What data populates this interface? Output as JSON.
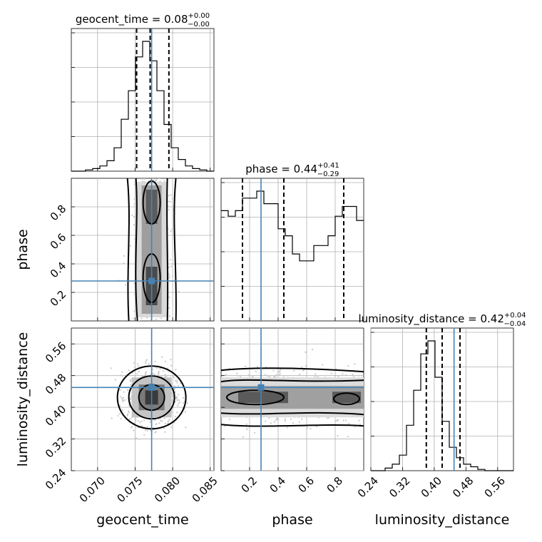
{
  "chart_data": {
    "type": "corner",
    "parameters": [
      {
        "name": "geocent_time",
        "label": "geocent_time",
        "title": {
          "prefix": "geocent_time = 0.08",
          "plus": "+0.00",
          "minus": "−0.00"
        },
        "range": [
          0.0665,
          0.0855
        ],
        "ticks": [
          0.07,
          0.075,
          0.08,
          0.085
        ],
        "tick_labels": [
          "0.070",
          "0.075",
          "0.080",
          "0.085"
        ],
        "truth": 0.0772,
        "quantiles": [
          0.0752,
          0.077,
          0.0795
        ],
        "hist": {
          "edges_start": 0.0665,
          "bin_width": 0.00095,
          "counts": [
            0,
            0,
            1,
            2,
            4,
            8,
            18,
            40,
            62,
            88,
            100,
            85,
            62,
            36,
            18,
            9,
            4,
            2,
            1,
            0
          ]
        }
      },
      {
        "name": "phase",
        "label": "phase",
        "title": {
          "prefix": "phase = 0.44",
          "plus": "+0.41",
          "minus": "−0.29"
        },
        "range": [
          0.0,
          1.0
        ],
        "ticks": [
          0.2,
          0.4,
          0.6,
          0.8
        ],
        "tick_labels": [
          "0.2",
          "0.4",
          "0.6",
          "0.8"
        ],
        "truth": 0.28,
        "quantiles": [
          0.15,
          0.44,
          0.86
        ],
        "hist": {
          "edges_start": 0.0,
          "bin_width": 0.05,
          "counts": [
            79,
            75,
            79,
            88,
            88,
            93,
            84,
            84,
            66,
            61,
            48,
            43,
            43,
            54,
            54,
            61,
            75,
            82,
            82,
            72
          ]
        }
      },
      {
        "name": "luminosity_distance",
        "label": "luminosity_distance",
        "title": {
          "prefix": "luminosity_distance = 0.42",
          "plus": "+0.04",
          "minus": "−0.04"
        },
        "range": [
          0.24,
          0.6
        ],
        "ticks": [
          0.24,
          0.32,
          0.4,
          0.48,
          0.56
        ],
        "tick_labels": [
          "0.24",
          "0.32",
          "0.40",
          "0.48",
          "0.56"
        ],
        "truth": 0.45,
        "quantiles": [
          0.38,
          0.42,
          0.465
        ],
        "hist": {
          "edges_start": 0.24,
          "bin_width": 0.018,
          "counts": [
            0,
            0,
            2,
            5,
            12,
            35,
            62,
            90,
            100,
            72,
            38,
            18,
            10,
            5,
            3,
            1,
            0,
            0,
            0,
            0
          ]
        }
      }
    ],
    "pair_plots": [
      {
        "x": "geocent_time",
        "y": "phase",
        "description": "2D density with contours"
      },
      {
        "x": "geocent_time",
        "y": "luminosity_distance",
        "description": "2D density with contours"
      },
      {
        "x": "phase",
        "y": "luminosity_distance",
        "description": "2D density with contours"
      }
    ],
    "grid": true
  },
  "colors": {
    "truth": "#4682b4",
    "hist": "#000000",
    "scatter": "#c8c8c8"
  }
}
